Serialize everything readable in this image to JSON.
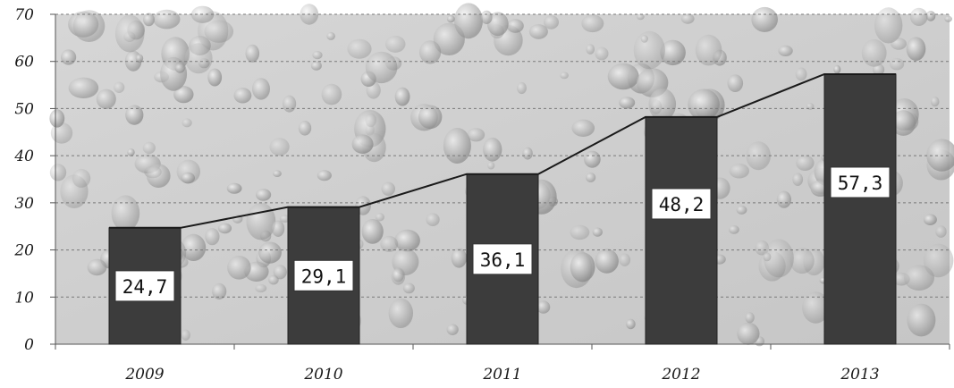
{
  "chart_data": {
    "type": "bar",
    "categories": [
      "2009",
      "2010",
      "2011",
      "2012",
      "2013"
    ],
    "values": [
      24.7,
      29.1,
      36.1,
      48.2,
      57.3
    ],
    "value_labels": [
      "24,7",
      "29,1",
      "36,1",
      "48,2",
      "57,3"
    ],
    "title": "",
    "xlabel": "",
    "ylabel": "",
    "ylim": [
      0,
      70
    ],
    "yticks": [
      "0",
      "10",
      "20",
      "30",
      "40",
      "50",
      "60",
      "70"
    ],
    "grid": true,
    "legend": "none",
    "overlay_line": true,
    "colors": {
      "bar": "#3c3c3c",
      "line": "#1a1a1a",
      "grid": "#7a7a7a",
      "background": "#cfcfcf"
    }
  }
}
